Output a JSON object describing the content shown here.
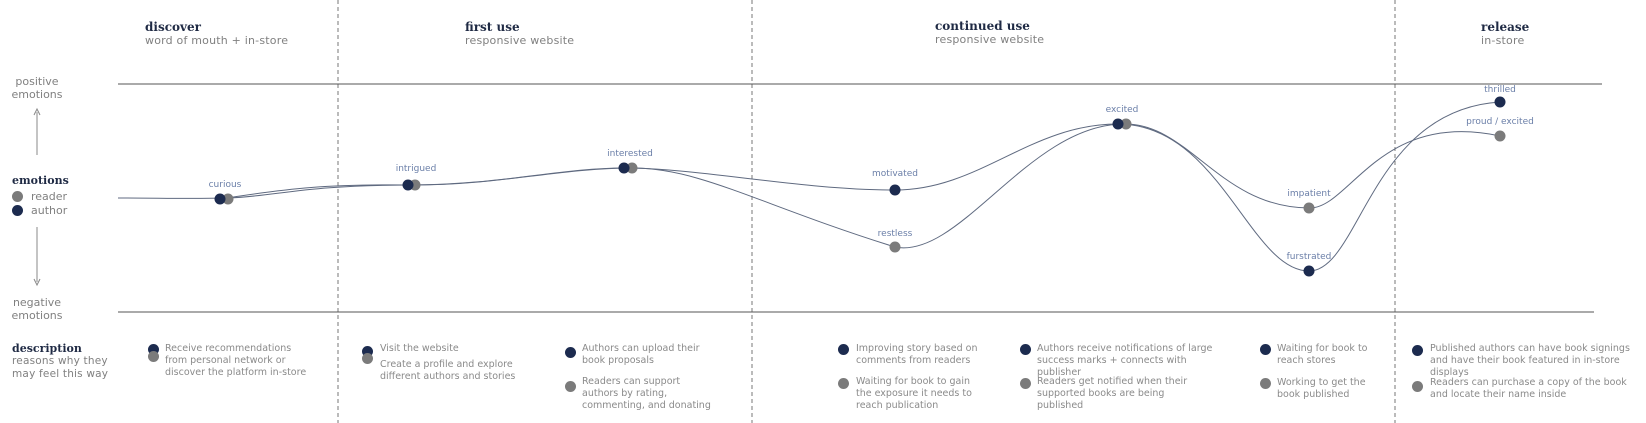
{
  "stages": [
    {
      "title": "discover",
      "subtitle": "word of mouth + in-store"
    },
    {
      "title": "first use",
      "subtitle": "responsive website"
    },
    {
      "title": "continued use",
      "subtitle": "responsive website"
    },
    {
      "title": "release",
      "subtitle": "in-store"
    }
  ],
  "axis": {
    "positive": "positive emotions",
    "negative": "negative emotions",
    "heading": "emotions",
    "reader": "reader",
    "author": "author"
  },
  "description": {
    "heading": "description",
    "sub": "reasons why they may feel this way"
  },
  "colors": {
    "author": "#1c2b4f",
    "reader": "#7b7b7b",
    "label": "#6b7fa8"
  },
  "emotion_labels": {
    "curious": "curious",
    "intrigued": "intrigued",
    "interested": "interested",
    "motivated": "motivated",
    "restless": "restless",
    "excited": "excited",
    "impatient": "impatient",
    "furstrated": "furstrated",
    "thrilled": "thrilled",
    "proud_excited": "proud / excited"
  },
  "descriptions": {
    "d1": "Receive recommendations from personal network or discover the platform in-store",
    "d2a": "Visit the website",
    "d2b": "Create a profile and explore different authors and stories",
    "d3a": "Authors can upload their book proposals",
    "d3b": "Readers can support authors by rating, commenting, and donating",
    "d4a": "Improving story based on comments from readers",
    "d4b": "Waiting for book to gain the exposure it needs to reach publication",
    "d5a": "Authors receive notifications of large success marks + connects with publisher",
    "d5b": "Readers get notified when their supported books are being published",
    "d6a": "Waiting for book to reach stores",
    "d6b": "Working to get the book published",
    "d7a": "Published authors can have book signings and have their book featured in in-store displays",
    "d7b": "Readers can purchase a copy of the book and locate their name inside"
  }
}
